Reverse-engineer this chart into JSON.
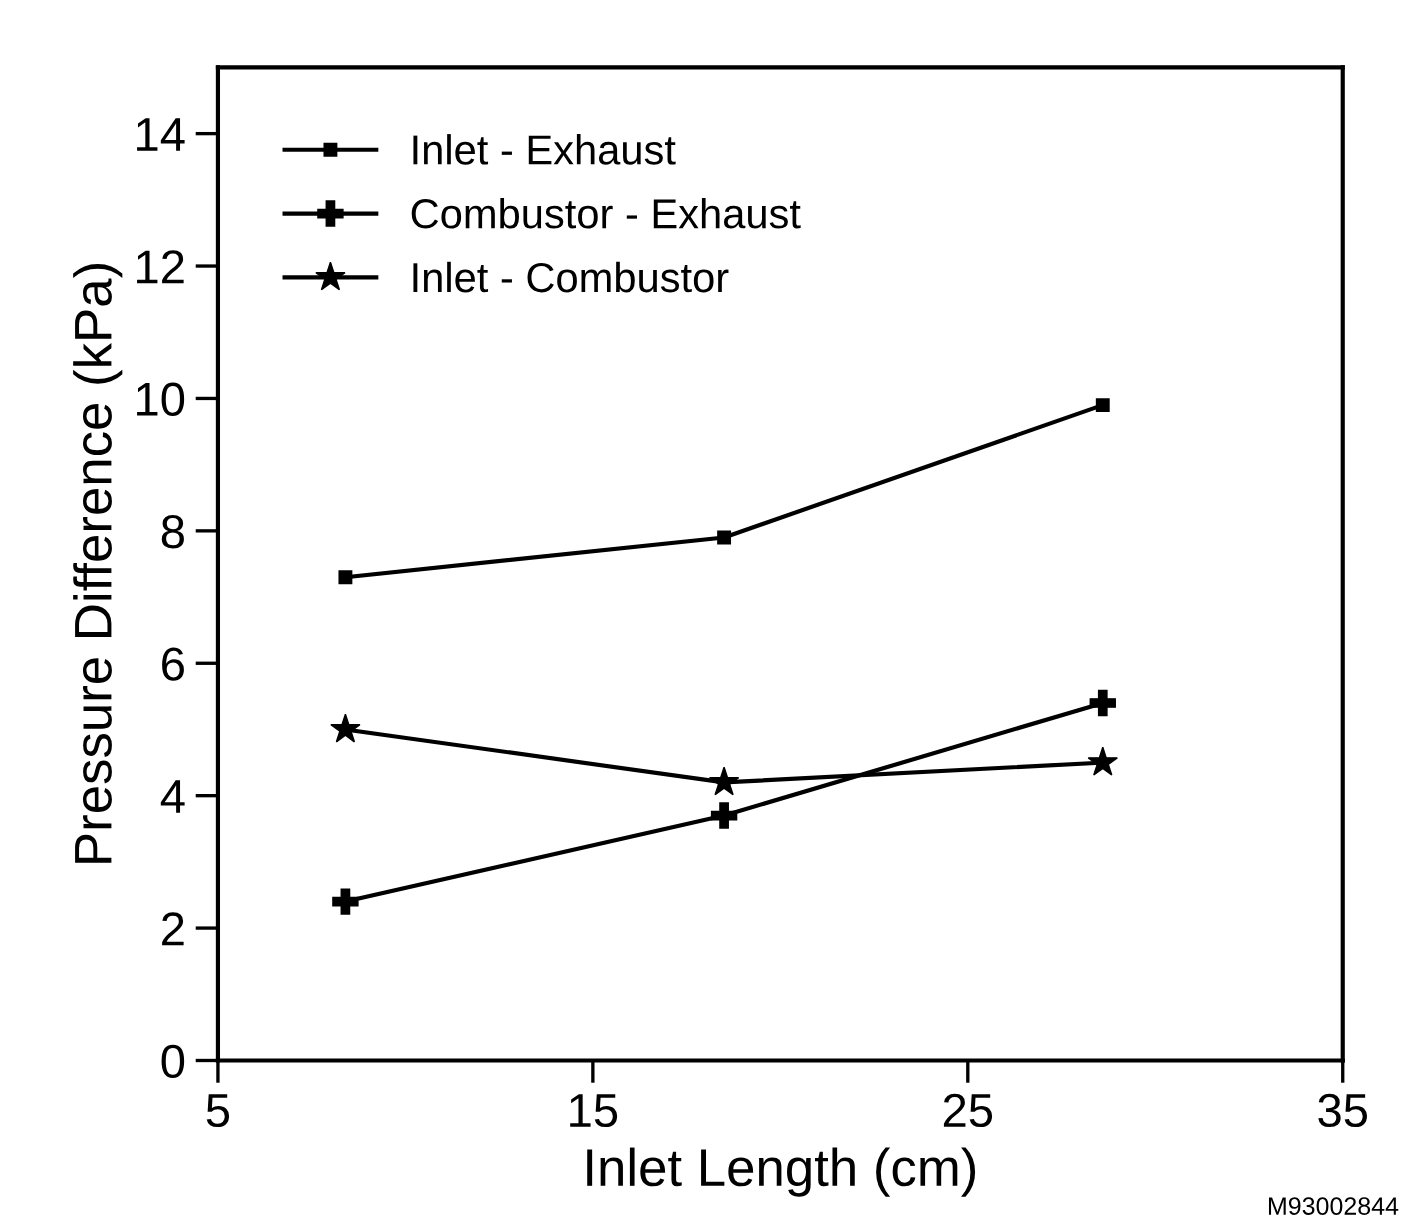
{
  "chart_data": {
    "type": "line",
    "xlabel": "Inlet Length (cm)",
    "ylabel": "Pressure Difference (kPa)",
    "x": [
      8.4,
      18.5,
      28.6
    ],
    "series": [
      {
        "name": "Inlet - Exhaust",
        "color": "#000000",
        "marker": "square",
        "values": [
          7.3,
          7.9,
          9.9
        ]
      },
      {
        "name": "Combustor - Exhaust",
        "color": "#000000",
        "marker": "cross",
        "values": [
          2.4,
          3.7,
          5.4
        ]
      },
      {
        "name": "Inlet - Combustor",
        "color": "#000000",
        "marker": "star",
        "values": [
          5.0,
          4.2,
          4.5
        ]
      }
    ],
    "xlim": [
      5,
      35
    ],
    "xticks": [
      5,
      15,
      25,
      35
    ],
    "ylim": [
      0,
      15
    ],
    "yticks": [
      0,
      2,
      4,
      6,
      8,
      10,
      12,
      14
    ],
    "grid": false,
    "legend": "top left",
    "annotations": [
      "M93002844"
    ]
  }
}
